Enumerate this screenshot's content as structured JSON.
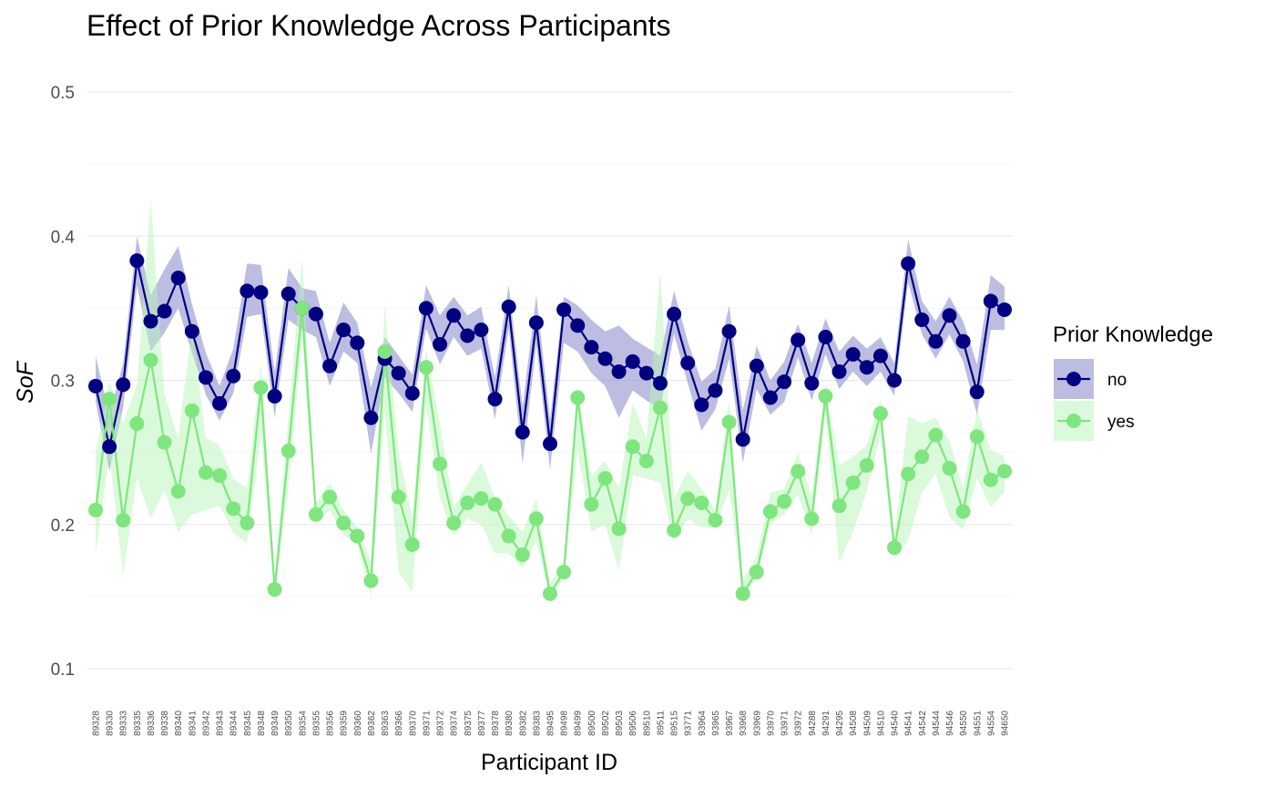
{
  "chart_data": {
    "type": "line",
    "title": "Effect of Prior Knowledge Across Participants",
    "xlabel": "Participant ID",
    "ylabel": "SoF",
    "ylim": [
      0.1,
      0.5
    ],
    "yticks": [
      0.1,
      0.2,
      0.3,
      0.4,
      0.5
    ],
    "grid": true,
    "legend": {
      "title": "Prior Knowledge",
      "position": "right"
    },
    "categories": [
      "89328",
      "89330",
      "89333",
      "89335",
      "89336",
      "89338",
      "89340",
      "89341",
      "89342",
      "89343",
      "89344",
      "89345",
      "89348",
      "89349",
      "89350",
      "89354",
      "89355",
      "89356",
      "89359",
      "89360",
      "89362",
      "89363",
      "89366",
      "89370",
      "89371",
      "89372",
      "89374",
      "89375",
      "89377",
      "89378",
      "89380",
      "89382",
      "89383",
      "89495",
      "89498",
      "89499",
      "89500",
      "89502",
      "89503",
      "89506",
      "89510",
      "89511",
      "89515",
      "93771",
      "93964",
      "93965",
      "93967",
      "93968",
      "93969",
      "93970",
      "93971",
      "93972",
      "94288",
      "94291",
      "94295",
      "94508",
      "94509",
      "94510",
      "94540",
      "94541",
      "94542",
      "94544",
      "94546",
      "94550",
      "94551",
      "94554",
      "94650"
    ],
    "series": [
      {
        "name": "no",
        "color": "#000080",
        "band_color": "#7b7bc4",
        "values": [
          0.296,
          0.254,
          0.297,
          0.383,
          0.341,
          0.348,
          0.371,
          0.334,
          0.302,
          0.284,
          0.303,
          0.362,
          0.361,
          0.289,
          0.36,
          0.35,
          0.346,
          0.31,
          0.335,
          0.326,
          0.274,
          0.315,
          0.305,
          0.291,
          0.35,
          0.325,
          0.345,
          0.331,
          0.335,
          0.287,
          0.351,
          0.264,
          0.34,
          0.256,
          0.349,
          0.338,
          0.323,
          0.315,
          0.306,
          0.313,
          0.305,
          0.298,
          0.346,
          0.312,
          0.283,
          0.293,
          0.334,
          0.259,
          0.31,
          0.288,
          0.299,
          0.328,
          0.298,
          0.33,
          0.306,
          0.318,
          0.309,
          0.317,
          0.3,
          0.381,
          0.342,
          0.327,
          0.345,
          0.327,
          0.292,
          0.355,
          0.349
        ],
        "band_low": [
          0.285,
          0.237,
          0.281,
          0.366,
          0.32,
          0.333,
          0.35,
          0.319,
          0.29,
          0.272,
          0.291,
          0.344,
          0.346,
          0.274,
          0.342,
          0.335,
          0.33,
          0.296,
          0.32,
          0.312,
          0.249,
          0.302,
          0.291,
          0.278,
          0.336,
          0.311,
          0.33,
          0.317,
          0.322,
          0.273,
          0.336,
          0.242,
          0.325,
          0.238,
          0.326,
          0.32,
          0.305,
          0.296,
          0.274,
          0.293,
          0.286,
          0.28,
          0.332,
          0.298,
          0.265,
          0.28,
          0.315,
          0.243,
          0.294,
          0.276,
          0.285,
          0.316,
          0.286,
          0.318,
          0.294,
          0.306,
          0.296,
          0.306,
          0.289,
          0.368,
          0.332,
          0.315,
          0.332,
          0.313,
          0.276,
          0.335,
          0.335
        ],
        "band_high": [
          0.317,
          0.276,
          0.312,
          0.4,
          0.359,
          0.377,
          0.393,
          0.353,
          0.319,
          0.296,
          0.322,
          0.381,
          0.38,
          0.306,
          0.378,
          0.364,
          0.362,
          0.326,
          0.354,
          0.34,
          0.295,
          0.33,
          0.317,
          0.304,
          0.366,
          0.345,
          0.358,
          0.345,
          0.351,
          0.302,
          0.366,
          0.282,
          0.359,
          0.273,
          0.358,
          0.352,
          0.342,
          0.334,
          0.338,
          0.329,
          0.323,
          0.317,
          0.362,
          0.327,
          0.299,
          0.308,
          0.352,
          0.279,
          0.324,
          0.3,
          0.313,
          0.339,
          0.312,
          0.343,
          0.32,
          0.331,
          0.322,
          0.33,
          0.312,
          0.398,
          0.355,
          0.341,
          0.358,
          0.341,
          0.311,
          0.373,
          0.365
        ]
      },
      {
        "name": "yes",
        "color": "#7fe67f",
        "band_color": "#b7f5b7",
        "values": [
          0.21,
          0.287,
          0.203,
          0.27,
          0.314,
          0.257,
          0.223,
          0.279,
          0.236,
          0.234,
          0.211,
          0.201,
          0.295,
          0.155,
          0.251,
          0.35,
          0.207,
          0.219,
          0.201,
          0.192,
          0.161,
          0.32,
          0.219,
          0.186,
          0.309,
          0.242,
          0.201,
          0.215,
          0.218,
          0.214,
          0.192,
          0.179,
          0.204,
          0.152,
          0.167,
          0.288,
          0.214,
          0.232,
          0.197,
          0.254,
          0.244,
          0.281,
          0.196,
          0.218,
          0.215,
          0.203,
          0.271,
          0.152,
          0.167,
          0.209,
          0.216,
          0.237,
          0.204,
          0.289,
          0.213,
          0.229,
          0.241,
          0.277,
          0.184,
          0.235,
          0.247,
          0.262,
          0.239,
          0.209,
          0.261,
          0.231,
          0.237
        ],
        "band_low": [
          0.18,
          0.248,
          0.165,
          0.232,
          0.204,
          0.224,
          0.195,
          0.207,
          0.21,
          0.213,
          0.194,
          0.187,
          0.262,
          0.15,
          0.226,
          0.328,
          0.201,
          0.21,
          0.193,
          0.186,
          0.15,
          0.279,
          0.167,
          0.153,
          0.283,
          0.218,
          0.193,
          0.204,
          0.2,
          0.18,
          0.18,
          0.17,
          0.188,
          0.15,
          0.162,
          0.252,
          0.195,
          0.2,
          0.168,
          0.234,
          0.232,
          0.229,
          0.188,
          0.204,
          0.198,
          0.198,
          0.224,
          0.15,
          0.162,
          0.2,
          0.207,
          0.221,
          0.193,
          0.276,
          0.174,
          0.195,
          0.223,
          0.262,
          0.176,
          0.189,
          0.222,
          0.235,
          0.205,
          0.196,
          0.232,
          0.212,
          0.223
        ],
        "band_high": [
          0.25,
          0.3,
          0.27,
          0.297,
          0.426,
          0.29,
          0.26,
          0.338,
          0.26,
          0.255,
          0.232,
          0.225,
          0.312,
          0.164,
          0.275,
          0.385,
          0.215,
          0.229,
          0.21,
          0.198,
          0.174,
          0.352,
          0.25,
          0.205,
          0.322,
          0.27,
          0.212,
          0.228,
          0.243,
          0.219,
          0.206,
          0.195,
          0.218,
          0.16,
          0.172,
          0.297,
          0.234,
          0.244,
          0.225,
          0.284,
          0.26,
          0.376,
          0.218,
          0.237,
          0.225,
          0.21,
          0.287,
          0.162,
          0.178,
          0.222,
          0.225,
          0.25,
          0.22,
          0.298,
          0.241,
          0.247,
          0.255,
          0.288,
          0.192,
          0.275,
          0.27,
          0.274,
          0.258,
          0.225,
          0.28,
          0.252,
          0.247
        ]
      }
    ]
  }
}
